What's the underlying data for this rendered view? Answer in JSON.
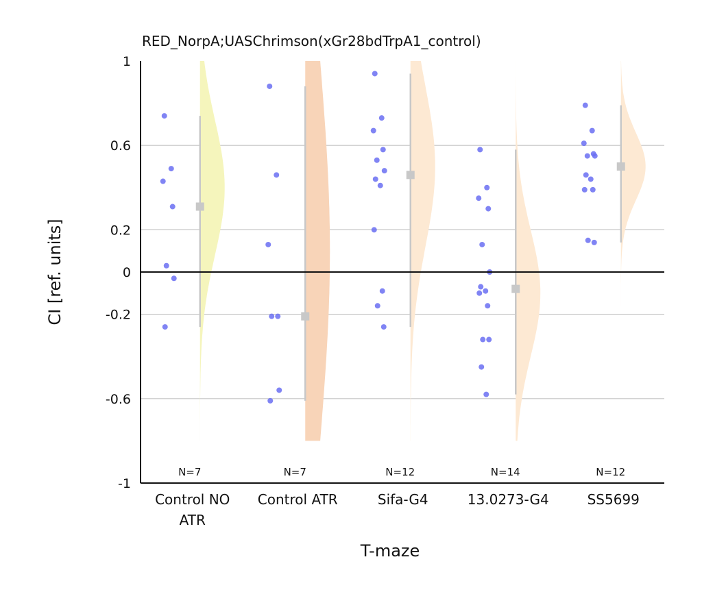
{
  "chart_data": {
    "type": "violin-scatter",
    "title": "RED_NorpA;UASChrimson(xGr28bdTrpA1_control)",
    "xlabel": "T-maze",
    "ylabel": "CI [ref. units]",
    "ylim": [
      -1,
      1
    ],
    "yticks": [
      {
        "value": 1,
        "label": "1"
      },
      {
        "value": 0.6,
        "label": "0.6"
      },
      {
        "value": 0.2,
        "label": "0.2"
      },
      {
        "value": 0,
        "label": "0"
      },
      {
        "value": -0.2,
        "label": "-0.2"
      },
      {
        "value": -0.6,
        "label": "-0.6"
      },
      {
        "value": -1,
        "label": "-1"
      }
    ],
    "gridlines": [
      0.6,
      0.2,
      -0.2,
      -0.6
    ],
    "zero_line": 0,
    "groups": [
      {
        "label_lines": [
          "Control NO",
          "ATR"
        ],
        "n_label": "N=7",
        "color": "#f5f5bc",
        "violin_range": [
          -0.8,
          1.0
        ],
        "violin_peak": 0.4,
        "violin_sigma": 0.32,
        "median": 0.31,
        "range": [
          -0.26,
          0.74
        ],
        "points": [
          0.74,
          0.49,
          0.43,
          0.31,
          0.03,
          -0.03,
          -0.26
        ]
      },
      {
        "label_lines": [
          "Control ATR"
        ],
        "n_label": "N=7",
        "color": "#f8d4b8",
        "violin_range": [
          -0.8,
          1.0
        ],
        "violin_peak": 0.1,
        "violin_sigma": 0.9,
        "median": -0.21,
        "range": [
          -0.61,
          0.88
        ],
        "points": [
          0.88,
          0.46,
          0.13,
          -0.21,
          -0.21,
          -0.56,
          -0.61
        ]
      },
      {
        "label_lines": [
          "Sifa-G4"
        ],
        "n_label": "N=12",
        "color": "#fde9d3",
        "violin_range": [
          -0.8,
          1.0
        ],
        "violin_peak": 0.5,
        "violin_sigma": 0.38,
        "median": 0.46,
        "range": [
          -0.26,
          0.94
        ],
        "points": [
          0.94,
          0.73,
          0.67,
          0.58,
          0.53,
          0.48,
          0.44,
          0.41,
          0.2,
          -0.09,
          -0.16,
          -0.26
        ]
      },
      {
        "label_lines": [
          "13.0273-G4"
        ],
        "n_label": "N=14",
        "color": "#fde9d3",
        "violin_range": [
          -0.8,
          1.0
        ],
        "violin_peak": -0.1,
        "violin_sigma": 0.3,
        "median": -0.08,
        "range": [
          -0.58,
          0.58
        ],
        "points": [
          0.58,
          0.4,
          0.35,
          0.3,
          0.13,
          0.0,
          -0.07,
          -0.09,
          -0.1,
          -0.16,
          -0.32,
          -0.32,
          -0.45,
          -0.58
        ]
      },
      {
        "label_lines": [
          "SS5699"
        ],
        "n_label": "N=12",
        "color": "#fde9d3",
        "violin_range": [
          -0.16,
          1.0
        ],
        "violin_peak": 0.5,
        "violin_sigma": 0.16,
        "median": 0.5,
        "range": [
          0.14,
          0.79
        ],
        "points": [
          0.79,
          0.67,
          0.61,
          0.56,
          0.55,
          0.55,
          0.46,
          0.44,
          0.39,
          0.39,
          0.15,
          0.14
        ]
      }
    ],
    "grid": true,
    "legend": "none"
  }
}
